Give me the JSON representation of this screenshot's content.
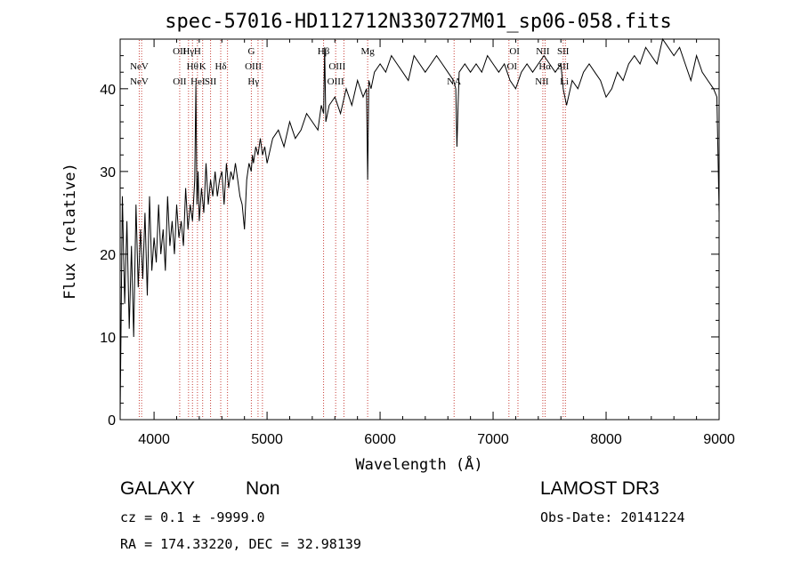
{
  "chart_data": {
    "type": "line",
    "title": "spec-57016-HD112712N330727M01_sp06-058.fits",
    "xlabel": "Wavelength (Å)",
    "ylabel": "Flux (relative)",
    "xlim": [
      3700,
      9000
    ],
    "ylim": [
      0,
      46
    ],
    "xticks": [
      4000,
      5000,
      6000,
      7000,
      8000,
      9000
    ],
    "yticks": [
      0,
      10,
      20,
      30,
      40
    ],
    "grid": false,
    "series": [
      {
        "x": [
          3700,
          3720,
          3740,
          3760,
          3780,
          3800,
          3820,
          3840,
          3860,
          3880,
          3900,
          3920,
          3940,
          3960,
          3980,
          4000,
          4020,
          4040,
          4060,
          4080,
          4100,
          4120,
          4140,
          4160,
          4180,
          4200,
          4220,
          4240,
          4260,
          4280,
          4300,
          4320,
          4340,
          4360,
          4370,
          4380,
          4390,
          4400,
          4420,
          4440,
          4460,
          4480,
          4500,
          4520,
          4540,
          4560,
          4580,
          4600,
          4620,
          4640,
          4660,
          4680,
          4700,
          4720,
          4740,
          4760,
          4780,
          4800,
          4820,
          4840,
          4860,
          4870,
          4880,
          4900,
          4920,
          4940,
          4960,
          4980,
          5000,
          5050,
          5100,
          5150,
          5200,
          5250,
          5300,
          5350,
          5400,
          5450,
          5480,
          5500,
          5510,
          5520,
          5550,
          5600,
          5650,
          5700,
          5750,
          5800,
          5850,
          5880,
          5890,
          5900,
          5920,
          5950,
          6000,
          6050,
          6100,
          6150,
          6200,
          6250,
          6300,
          6350,
          6400,
          6450,
          6500,
          6550,
          6600,
          6650,
          6670,
          6680,
          6690,
          6700,
          6750,
          6800,
          6850,
          6900,
          6950,
          7000,
          7050,
          7100,
          7150,
          7200,
          7250,
          7300,
          7350,
          7400,
          7450,
          7500,
          7550,
          7600,
          7620,
          7650,
          7700,
          7750,
          7800,
          7850,
          7900,
          7950,
          8000,
          8050,
          8100,
          8150,
          8200,
          8250,
          8300,
          8350,
          8400,
          8450,
          8500,
          8550,
          8600,
          8650,
          8700,
          8750,
          8800,
          8850,
          8900,
          8950,
          8980,
          9000
        ],
        "y": [
          0.5,
          27,
          14,
          24,
          11,
          21,
          10,
          26,
          16,
          23,
          17,
          25,
          15,
          27,
          18,
          22,
          19,
          26,
          20,
          23,
          18,
          27,
          21,
          24,
          20,
          26,
          22,
          24,
          21,
          28,
          23,
          26,
          24,
          29,
          40.5,
          26,
          30,
          24,
          28,
          25,
          31,
          26,
          29,
          27,
          30,
          27,
          29,
          30,
          26,
          31,
          28,
          30,
          29,
          31,
          29,
          27,
          26,
          23,
          29,
          31,
          30,
          32,
          31,
          33,
          32,
          34,
          32,
          33,
          31,
          34,
          35,
          33,
          36,
          34,
          35,
          37,
          36,
          35,
          38,
          37,
          45,
          36,
          38,
          39,
          37,
          40,
          38,
          41,
          39,
          40,
          29,
          41,
          40,
          42,
          43,
          42,
          44,
          43,
          42,
          41,
          44,
          43,
          42,
          43,
          44,
          43,
          42,
          41,
          40,
          33,
          38,
          42,
          43,
          42,
          43,
          42,
          44,
          43,
          42,
          43,
          41,
          40,
          42,
          43,
          42,
          43,
          44,
          43,
          42,
          43,
          40,
          38,
          41,
          40,
          42,
          43,
          42,
          41,
          39,
          40,
          42,
          41,
          43,
          44,
          43,
          45,
          44,
          43,
          46,
          45,
          44,
          45,
          43,
          41,
          44,
          42,
          41,
          40,
          39,
          25
        ]
      }
    ],
    "lines": [
      {
        "w": 3869,
        "label": "NeV",
        "row": 1
      },
      {
        "w": 3869,
        "label": "NeV",
        "row": 2
      },
      {
        "w": 4226,
        "label": "OII",
        "row": 0
      },
      {
        "w": 4227,
        "label": "OII",
        "row": 2
      },
      {
        "w": 4305,
        "label": "Hγ",
        "row": 0
      },
      {
        "w": 4340,
        "label": "Hθ",
        "row": 1
      },
      {
        "w": 4384,
        "label": "H",
        "row": 0
      },
      {
        "w": 4388,
        "label": "HeI",
        "row": 2
      },
      {
        "w": 4430,
        "label": "K",
        "row": 1
      },
      {
        "w": 4500,
        "label": "SII",
        "row": 2
      },
      {
        "w": 4590,
        "label": "Hδ",
        "row": 1
      },
      {
        "w": 4861,
        "label": "G",
        "row": 0
      },
      {
        "w": 4878,
        "label": "OIII",
        "row": 1
      },
      {
        "w": 4880,
        "label": "Hγ",
        "row": 2
      },
      {
        "w": 5500,
        "label": "Hβ",
        "row": 0
      },
      {
        "w": 5620,
        "label": "OIII",
        "row": 1
      },
      {
        "w": 5607,
        "label": "OIII",
        "row": 2
      },
      {
        "w": 5890,
        "label": "Mg",
        "row": 0
      },
      {
        "w": 6655,
        "label": "NA",
        "row": 2
      },
      {
        "w": 7190,
        "label": "OI",
        "row": 0
      },
      {
        "w": 7167,
        "label": "OI",
        "row": 1
      },
      {
        "w": 7440,
        "label": "NII",
        "row": 0
      },
      {
        "w": 7458,
        "label": "Hα",
        "row": 1
      },
      {
        "w": 7432,
        "label": "NII",
        "row": 2
      },
      {
        "w": 7620,
        "label": "SII",
        "row": 0
      },
      {
        "w": 7620,
        "label": "SII",
        "row": 1
      },
      {
        "w": 7630,
        "label": "Li",
        "row": 2
      }
    ],
    "line_marks": [
      3869,
      3890,
      4227,
      4305,
      4340,
      4384,
      4430,
      4500,
      4590,
      4650,
      4861,
      4920,
      4959,
      5500,
      5607,
      5680,
      5890,
      6655,
      7140,
      7220,
      7440,
      7460,
      7620,
      7640
    ]
  },
  "info": {
    "object_class": "GALAXY",
    "subclass": "Non",
    "survey": "LAMOST DR3",
    "cz": "cz = 0.1 ± -9999.0",
    "obs_date": "Obs-Date: 20141224",
    "coords": "RA = 174.33220, DEC =  32.98139"
  }
}
